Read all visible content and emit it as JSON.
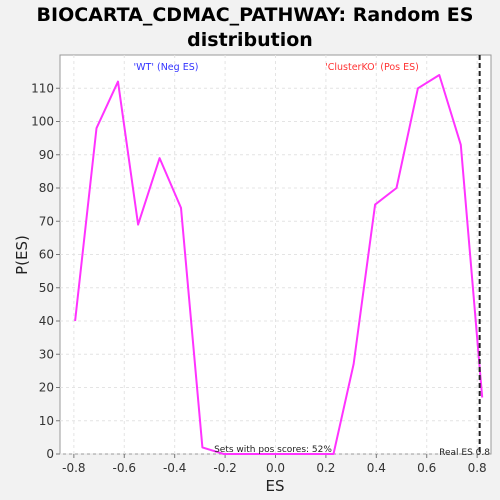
{
  "chart_data": {
    "type": "line",
    "title_line1": "BIOCARTA_CDMAC_PATHWAY: Random ES",
    "title_line2": "distribution",
    "xlabel": "ES",
    "ylabel": "P(ES)",
    "xlim": [
      -0.855,
      0.855
    ],
    "ylim": [
      0,
      120
    ],
    "x_ticks": [
      "-0.8",
      "-0.6",
      "-0.4",
      "-0.2",
      "0.0",
      "0.2",
      "0.4",
      "0.6",
      "0.8"
    ],
    "x_tick_values": [
      -0.8,
      -0.6,
      -0.4,
      -0.2,
      0.0,
      0.2,
      0.4,
      0.6,
      0.8
    ],
    "y_ticks": [
      "0",
      "10",
      "20",
      "30",
      "40",
      "50",
      "60",
      "70",
      "80",
      "90",
      "100",
      "110"
    ],
    "y_tick_values": [
      0,
      10,
      20,
      30,
      40,
      50,
      60,
      70,
      80,
      90,
      100,
      110
    ],
    "grid": true,
    "series": [
      {
        "color": "#ff33ff",
        "x": [
          -0.795,
          -0.71,
          -0.625,
          -0.545,
          -0.46,
          -0.375,
          -0.29,
          -0.205,
          0.23,
          0.31,
          0.395,
          0.48,
          0.565,
          0.65,
          0.735,
          0.82
        ],
        "y": [
          40,
          98,
          112,
          69,
          89,
          74,
          2,
          0,
          0,
          27,
          75,
          80,
          110,
          114,
          93,
          17
        ]
      }
    ],
    "real_es_value": 0.81,
    "annotations": {
      "neg_label": "'WT' (Neg ES)",
      "neg_color": "#3333ff",
      "pos_label": "'ClusterKO' (Pos ES)",
      "pos_color": "#ff3333",
      "pos_scores_text": "Sets with pos scores: 52%",
      "real_es_text": "Real ES 0.8"
    }
  }
}
